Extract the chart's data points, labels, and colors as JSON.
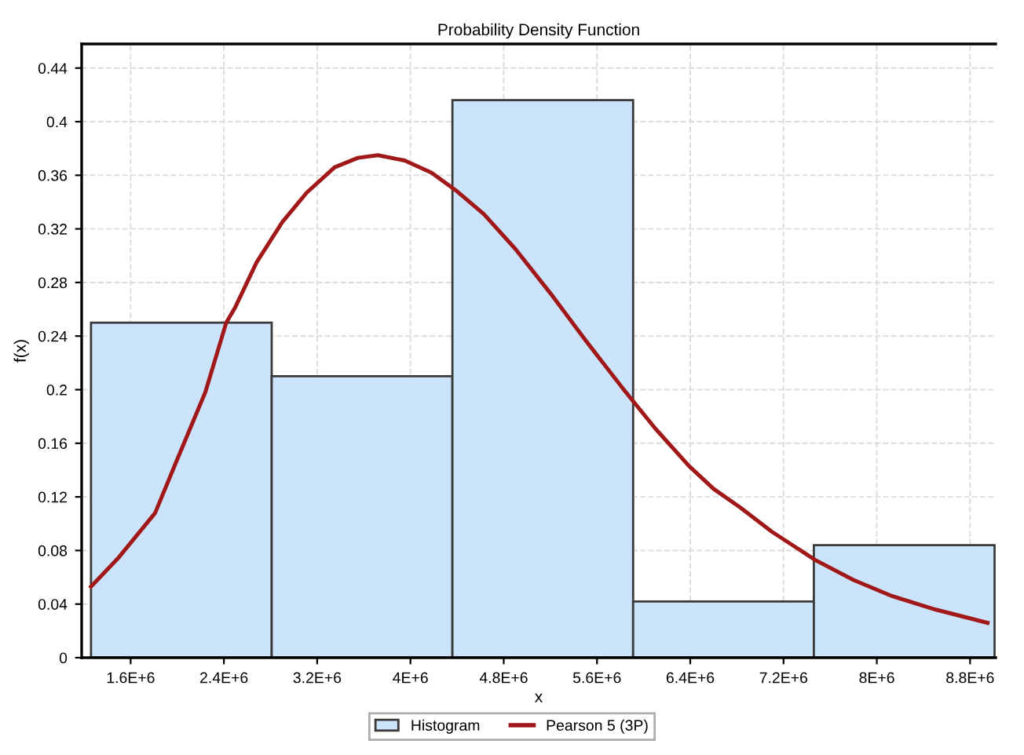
{
  "chart_data": {
    "type": "histogram",
    "title": "Probability Density Function",
    "xlabel": "x",
    "ylabel": "f(x)",
    "bins": [
      1260000.0,
      2810000.0,
      4360000.0,
      5910000.0,
      7460000.0,
      9010000.0
    ],
    "series": [
      {
        "name": "Histogram",
        "color": "#cce4fb",
        "values": [
          0.25,
          0.21,
          0.416,
          0.042,
          0.084
        ]
      },
      {
        "name": "Pearson 5 (3P)",
        "type": "line",
        "color": "#a01818",
        "x": [
          1260000.0,
          1500000.0,
          1810000.0,
          2000000.0,
          2240000.0,
          2420000.0,
          2500000.0,
          2680000.0,
          2900000.0,
          3110000.0,
          3350000.0,
          3550000.0,
          3720000.0,
          3950000.0,
          4180000.0,
          4400000.0,
          4630000.0,
          4900000.0,
          5200000.0,
          5500000.0,
          5830000.0,
          6100000.0,
          6390000.0,
          6600000.0,
          6830000.0,
          7100000.0,
          7470000.0,
          7800000.0,
          8130000.0,
          8500000.0,
          8950000.0
        ],
        "values": [
          0.053,
          0.075,
          0.108,
          0.148,
          0.198,
          0.25,
          0.262,
          0.295,
          0.325,
          0.347,
          0.366,
          0.373,
          0.375,
          0.371,
          0.362,
          0.348,
          0.331,
          0.305,
          0.272,
          0.237,
          0.2,
          0.171,
          0.143,
          0.126,
          0.112,
          0.094,
          0.073,
          0.058,
          0.046,
          0.036,
          0.026
        ]
      }
    ],
    "xlim": [
      1180000.0,
      9020000.0
    ],
    "ylim": [
      0,
      0.458
    ],
    "xticks": [
      {
        "value": 1600000.0,
        "label": "1.6E+6"
      },
      {
        "value": 2400000.0,
        "label": "2.4E+6"
      },
      {
        "value": 3200000.0,
        "label": "3.2E+6"
      },
      {
        "value": 4000000.0,
        "label": "4E+6"
      },
      {
        "value": 4800000.0,
        "label": "4.8E+6"
      },
      {
        "value": 5600000.0,
        "label": "5.6E+6"
      },
      {
        "value": 6400000.0,
        "label": "6.4E+6"
      },
      {
        "value": 7200000.0,
        "label": "7.2E+6"
      },
      {
        "value": 8000000.0,
        "label": "8E+6"
      },
      {
        "value": 8800000.0,
        "label": "8.8E+6"
      }
    ],
    "yticks": [
      0,
      0.04,
      0.08,
      0.12,
      0.16,
      0.2,
      0.24,
      0.28,
      0.32,
      0.36,
      0.4,
      0.44
    ],
    "grid": true,
    "legend": "bottom"
  }
}
